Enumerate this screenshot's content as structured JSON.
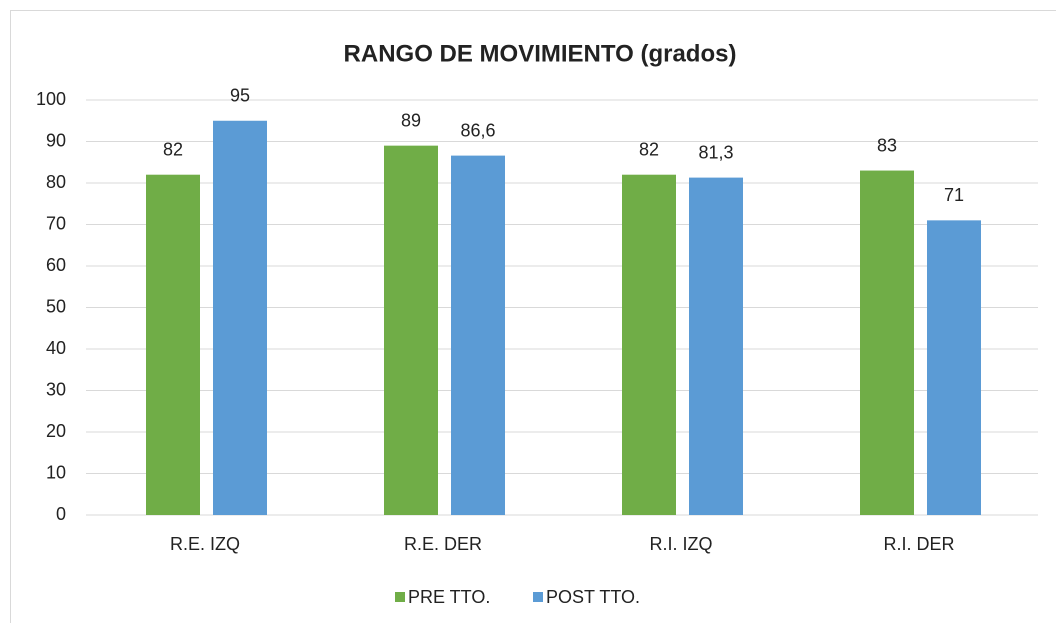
{
  "chart_data": {
    "type": "bar",
    "title": "RANGO DE MOVIMIENTO (grados)",
    "categories": [
      "R.E. IZQ",
      "R.E. DER",
      "R.I. IZQ",
      "R.I. DER"
    ],
    "series": [
      {
        "name": "PRE TTO.",
        "color": "#70ad47",
        "values": [
          82,
          89,
          82,
          83
        ]
      },
      {
        "name": "POST TTO.",
        "color": "#5b9bd5",
        "values": [
          95,
          86.6,
          81.3,
          71
        ],
        "value_labels": [
          "95",
          "86,6",
          "81,3",
          "71"
        ]
      }
    ],
    "ylim": [
      0,
      100
    ],
    "yticks": [
      0,
      10,
      20,
      30,
      40,
      50,
      60,
      70,
      80,
      90,
      100
    ],
    "grid": true,
    "legend": "bottom"
  }
}
